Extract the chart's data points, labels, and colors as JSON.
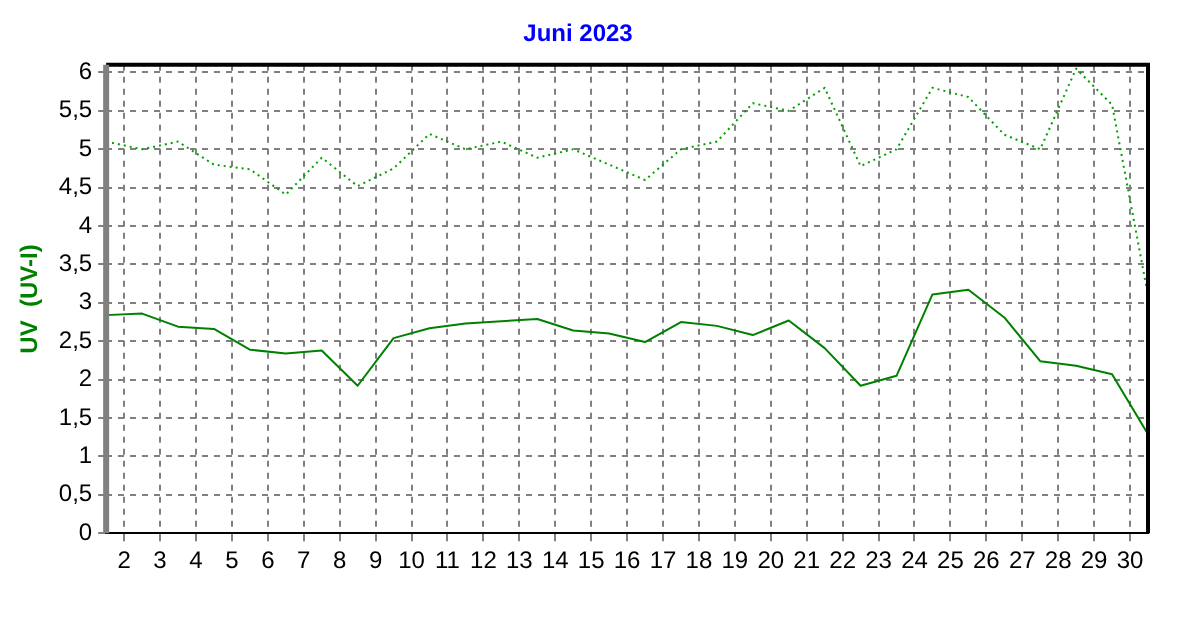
{
  "chart_data": {
    "type": "line",
    "title": "Juni 2023",
    "ylabel": "UV  (UV-I)",
    "x": [
      1.5,
      2.5,
      3.5,
      4.5,
      5.5,
      6.5,
      7.5,
      8.5,
      9.5,
      10.5,
      11.5,
      12.5,
      13.5,
      14.5,
      15.5,
      16.5,
      17.5,
      18.5,
      19.5,
      20.5,
      21.5,
      22.5,
      23.5,
      24.5,
      25.5,
      26.5,
      27.5,
      28.5,
      29.5,
      30.5
    ],
    "series": [
      {
        "color": "#00a000",
        "line_style": "dotted",
        "values": [
          5.1,
          5.0,
          5.1,
          4.8,
          4.74,
          4.41,
          4.89,
          4.52,
          4.75,
          5.2,
          5.0,
          5.1,
          4.89,
          5.0,
          4.8,
          4.6,
          5.0,
          5.1,
          5.6,
          5.5,
          5.8,
          4.78,
          5.0,
          5.8,
          5.68,
          5.19,
          5.0,
          6.05,
          5.58,
          3.1
        ]
      },
      {
        "color": "#008000",
        "line_style": "solid",
        "values": [
          2.84,
          2.86,
          2.69,
          2.66,
          2.39,
          2.34,
          2.38,
          1.92,
          2.54,
          2.67,
          2.73,
          2.76,
          2.79,
          2.64,
          2.6,
          2.49,
          2.75,
          2.7,
          2.58,
          2.77,
          2.41,
          1.92,
          2.05,
          3.11,
          3.17,
          2.81,
          2.24,
          2.18,
          2.07,
          1.29
        ]
      }
    ],
    "xlim": [
      1.5,
      30.5
    ],
    "xticks": [
      2,
      3,
      4,
      5,
      6,
      7,
      8,
      9,
      10,
      11,
      12,
      13,
      14,
      15,
      16,
      17,
      18,
      19,
      20,
      21,
      22,
      23,
      24,
      25,
      26,
      27,
      28,
      29,
      30
    ],
    "ylim": [
      0,
      6.1
    ],
    "yticks": [
      0,
      {
        "value": 0.5,
        "label": "0,5"
      },
      1,
      {
        "value": 1.5,
        "label": "1,5"
      },
      2,
      {
        "value": 2.5,
        "label": "2,5"
      },
      3,
      {
        "value": 3.5,
        "label": "3,5"
      },
      4,
      {
        "value": 4.5,
        "label": "4,5"
      },
      5,
      {
        "value": 5.5,
        "label": "5,5"
      },
      6
    ],
    "grid": true,
    "legend": false,
    "marker": "none"
  }
}
